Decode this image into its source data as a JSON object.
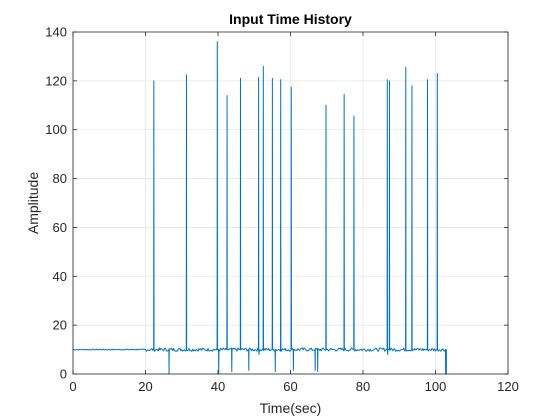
{
  "chart_data": {
    "type": "line",
    "title": "Input Time History",
    "xlabel": "Time(sec)",
    "ylabel": "Amplitude",
    "xlim": [
      0,
      120
    ],
    "ylim": [
      0,
      140
    ],
    "xticks": [
      0,
      20,
      40,
      60,
      80,
      100,
      120
    ],
    "yticks": [
      0,
      20,
      40,
      60,
      80,
      100,
      120,
      140
    ],
    "grid": true,
    "legend": "none",
    "colors": {
      "series": "#0072BD",
      "grid": "#e6e6e6",
      "axis": "#262626"
    },
    "series": [
      {
        "baseline": 10,
        "end_time": 103,
        "spikes": [
          {
            "x": 22.3,
            "y": 120
          },
          {
            "x": 31.3,
            "y": 122.5
          },
          {
            "x": 39.8,
            "y": 136
          },
          {
            "x": 42.5,
            "y": 114
          },
          {
            "x": 46.2,
            "y": 121
          },
          {
            "x": 51.2,
            "y": 121.5
          },
          {
            "x": 52.5,
            "y": 126
          },
          {
            "x": 55.0,
            "y": 121
          },
          {
            "x": 57.3,
            "y": 120.5
          },
          {
            "x": 60.2,
            "y": 117.5
          },
          {
            "x": 69.8,
            "y": 110
          },
          {
            "x": 74.8,
            "y": 114.5
          },
          {
            "x": 77.5,
            "y": 105.5
          },
          {
            "x": 86.7,
            "y": 120.5
          },
          {
            "x": 87.3,
            "y": 120
          },
          {
            "x": 91.8,
            "y": 125.5
          },
          {
            "x": 93.5,
            "y": 118
          },
          {
            "x": 97.8,
            "y": 120.5
          },
          {
            "x": 100.5,
            "y": 123
          }
        ],
        "dips": [
          {
            "x": 26.5,
            "y": 0
          },
          {
            "x": 40.2,
            "y": 0
          },
          {
            "x": 43.8,
            "y": 1
          },
          {
            "x": 48.5,
            "y": 1.5
          },
          {
            "x": 51.3,
            "y": 8
          },
          {
            "x": 55.8,
            "y": 1
          },
          {
            "x": 60.8,
            "y": 1.5
          },
          {
            "x": 66.8,
            "y": 1.5
          },
          {
            "x": 67.5,
            "y": 1
          },
          {
            "x": 86.8,
            "y": 8
          },
          {
            "x": 102.8,
            "y": 0
          }
        ]
      }
    ]
  }
}
